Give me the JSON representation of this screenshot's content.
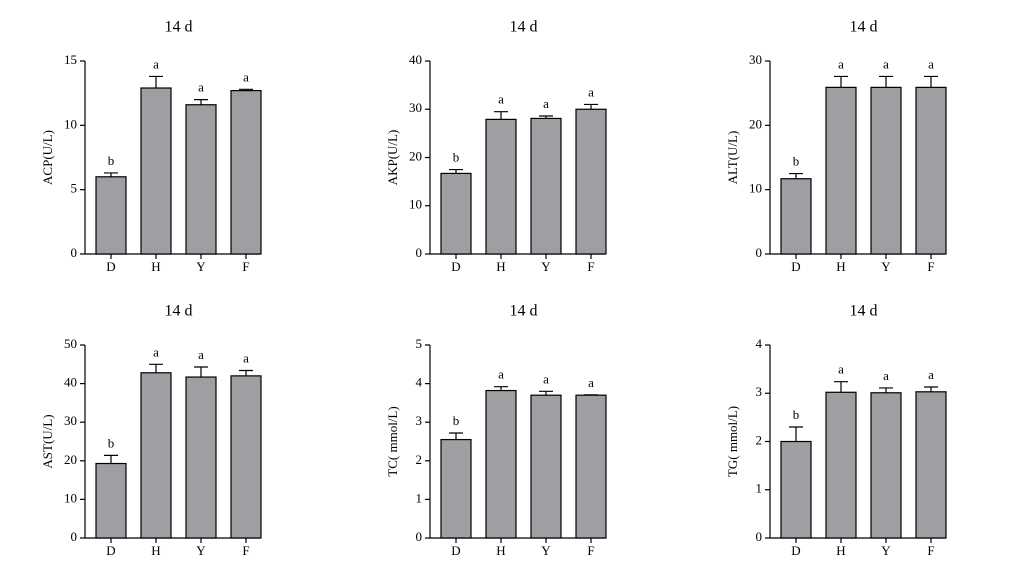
{
  "chart_data": [
    {
      "type": "bar",
      "title": "14 d",
      "ylabel": "ACP(U/L)",
      "categories": [
        "D",
        "H",
        "Y",
        "F"
      ],
      "values": [
        6.0,
        12.9,
        11.6,
        12.7
      ],
      "errors": [
        0.3,
        0.9,
        0.4,
        0.1
      ],
      "annotations": [
        "b",
        "a",
        "a",
        "a"
      ],
      "ylim": [
        0,
        15
      ],
      "yticks": [
        0,
        5,
        10,
        15
      ],
      "color": "#9e9ea3"
    },
    {
      "type": "bar",
      "title": "14 d",
      "ylabel": "AKP(U/L)",
      "categories": [
        "D",
        "H",
        "Y",
        "F"
      ],
      "values": [
        16.7,
        27.9,
        28.1,
        30.0
      ],
      "errors": [
        0.8,
        1.6,
        0.5,
        1.0
      ],
      "annotations": [
        "b",
        "a",
        "a",
        "a"
      ],
      "ylim": [
        0,
        40
      ],
      "yticks": [
        0,
        10,
        20,
        30,
        40
      ],
      "color": "#9e9ea3"
    },
    {
      "type": "bar",
      "title": "14 d",
      "ylabel": "ALT(U/L)",
      "categories": [
        "D",
        "H",
        "Y",
        "F"
      ],
      "values": [
        11.7,
        25.9,
        25.9,
        25.9
      ],
      "errors": [
        0.8,
        1.7,
        1.7,
        1.7
      ],
      "annotations": [
        "b",
        "a",
        "a",
        "a"
      ],
      "ylim": [
        0,
        30
      ],
      "yticks": [
        0,
        10,
        20,
        30
      ],
      "color": "#9e9ea3"
    },
    {
      "type": "bar",
      "title": "14 d",
      "ylabel": "AST(U/L)",
      "categories": [
        "D",
        "H",
        "Y",
        "F"
      ],
      "values": [
        19.3,
        42.8,
        41.7,
        42.0
      ],
      "errors": [
        2.1,
        2.2,
        2.6,
        1.4
      ],
      "annotations": [
        "b",
        "a",
        "a",
        "a"
      ],
      "ylim": [
        0,
        50
      ],
      "yticks": [
        0,
        10,
        20,
        30,
        40,
        50
      ],
      "color": "#9e9ea3"
    },
    {
      "type": "bar",
      "title": "14 d",
      "ylabel": "TC( mmol/L)",
      "categories": [
        "D",
        "H",
        "Y",
        "F"
      ],
      "values": [
        2.55,
        3.82,
        3.7,
        3.7
      ],
      "errors": [
        0.17,
        0.1,
        0.1,
        0.01
      ],
      "annotations": [
        "b",
        "a",
        "a",
        "a"
      ],
      "ylim": [
        0,
        5
      ],
      "yticks": [
        0,
        1,
        2,
        3,
        4,
        5
      ],
      "color": "#9e9ea3"
    },
    {
      "type": "bar",
      "title": "14 d",
      "ylabel": "TG( mmol/L)",
      "categories": [
        "D",
        "H",
        "Y",
        "F"
      ],
      "values": [
        2.0,
        3.02,
        3.01,
        3.03
      ],
      "errors": [
        0.3,
        0.22,
        0.1,
        0.1
      ],
      "annotations": [
        "b",
        "a",
        "a",
        "a"
      ],
      "ylim": [
        0,
        4
      ],
      "yticks": [
        0,
        1,
        2,
        3,
        4
      ],
      "color": "#9e9ea3"
    }
  ]
}
